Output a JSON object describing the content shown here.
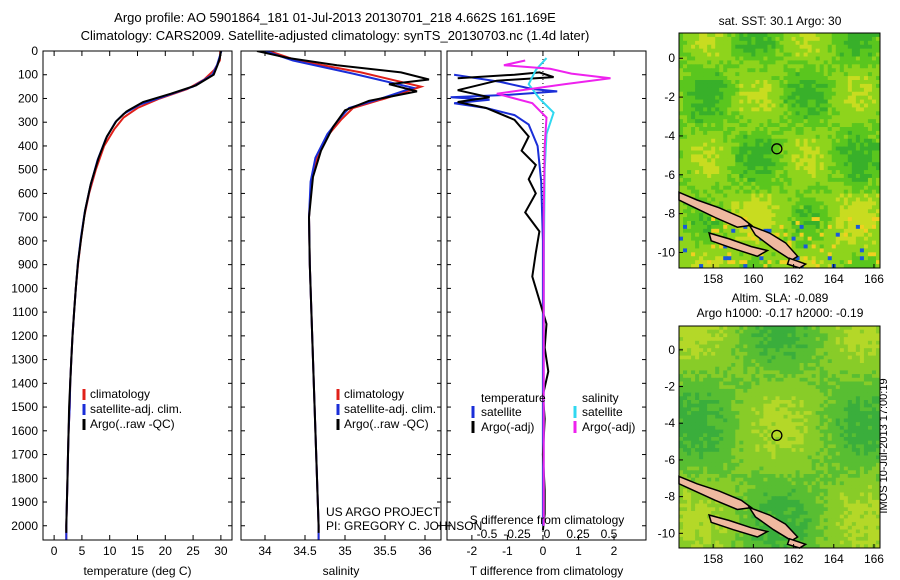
{
  "header": {
    "title_line1": "Argo profile: AO 5901864_181 01-Jul-2013 20130701_218 4.662S 161.169E",
    "title_line2": "Climatology: CARS2009. Satellite-adjusted climatology: synTS_20130703.nc (1.4d later)"
  },
  "colors": {
    "climatology": "#e0201a",
    "satellite": "#1a2ed8",
    "argo": "#000000",
    "sal_sat": "#30d8f0",
    "sal_argo": "#ee22ee"
  },
  "chart_data": [
    {
      "type": "line",
      "name": "temperature-profile",
      "xlabel": "temperature (deg C)",
      "ylabel": "",
      "xlim": [
        -2,
        32
      ],
      "ylim": [
        2060,
        0
      ],
      "xticks": [
        0,
        5,
        10,
        15,
        20,
        25,
        30
      ],
      "xtick_labels": [
        "0",
        "5",
        "10",
        "15",
        "20",
        "25",
        "30"
      ],
      "yticks": [
        0,
        100,
        200,
        300,
        400,
        500,
        600,
        700,
        800,
        900,
        1000,
        1100,
        1200,
        1300,
        1400,
        1500,
        1600,
        1700,
        1800,
        1900,
        2000
      ],
      "ytick_labels": [
        "0",
        "100",
        "200",
        "300",
        "400",
        "500",
        "600",
        "700",
        "800",
        "900",
        "1000",
        "1100",
        "1200",
        "1300",
        "1400",
        "1500",
        "1600",
        "1700",
        "1800",
        "1900",
        "2000"
      ],
      "series": [
        {
          "name": "climatology",
          "color": "#e0201a",
          "points": [
            [
              29.9,
              0
            ],
            [
              29.8,
              40
            ],
            [
              28.8,
              80
            ],
            [
              27,
              120
            ],
            [
              24,
              160
            ],
            [
              19,
              200
            ],
            [
              15,
              240
            ],
            [
              12.5,
              280
            ],
            [
              10.8,
              330
            ],
            [
              9,
              400
            ],
            [
              7.5,
              500
            ],
            [
              6.3,
              600
            ],
            [
              5.4,
              700
            ],
            [
              4.8,
              800
            ],
            [
              4.3,
              900
            ],
            [
              3.9,
              1000
            ],
            [
              3.6,
              1100
            ],
            [
              3.3,
              1200
            ],
            [
              3.1,
              1300
            ],
            [
              2.9,
              1400
            ],
            [
              2.8,
              1500
            ],
            [
              2.6,
              1600
            ],
            [
              2.5,
              1700
            ],
            [
              2.4,
              1800
            ],
            [
              2.3,
              1900
            ],
            [
              2.2,
              2000
            ],
            [
              2.2,
              2060
            ]
          ]
        },
        {
          "name": "satellite-adj. clim.",
          "color": "#1a2ed8",
          "points": [
            [
              30.1,
              0
            ],
            [
              29.7,
              30
            ],
            [
              29.3,
              60
            ],
            [
              28.5,
              100
            ],
            [
              25,
              150
            ],
            [
              20,
              190
            ],
            [
              15.5,
              225
            ],
            [
              12.5,
              265
            ],
            [
              11,
              300
            ],
            [
              9.3,
              370
            ],
            [
              7.8,
              460
            ],
            [
              6.5,
              570
            ],
            [
              5.5,
              680
            ],
            [
              4.8,
              790
            ],
            [
              4.3,
              890
            ],
            [
              3.9,
              1000
            ],
            [
              3.6,
              1100
            ],
            [
              3.3,
              1200
            ],
            [
              3.1,
              1300
            ],
            [
              2.9,
              1400
            ],
            [
              2.8,
              1500
            ],
            [
              2.6,
              1600
            ],
            [
              2.5,
              1700
            ],
            [
              2.4,
              1800
            ],
            [
              2.3,
              1900
            ],
            [
              2.2,
              2000
            ],
            [
              2.2,
              2060
            ]
          ]
        },
        {
          "name": "Argo(..raw -QC)",
          "color": "#000000",
          "points": [
            [
              30,
              0
            ],
            [
              29.8,
              30
            ],
            [
              29.4,
              60
            ],
            [
              28.7,
              100
            ],
            [
              25.5,
              145
            ],
            [
              21,
              180
            ],
            [
              16,
              215
            ],
            [
              13,
              255
            ],
            [
              11.2,
              295
            ],
            [
              9.5,
              360
            ],
            [
              8,
              450
            ],
            [
              6.6,
              560
            ],
            [
              5.6,
              670
            ],
            [
              4.9,
              780
            ],
            [
              4.3,
              890
            ],
            [
              3.9,
              1000
            ],
            [
              3.6,
              1100
            ],
            [
              3.3,
              1200
            ],
            [
              3.1,
              1300
            ],
            [
              2.9,
              1400
            ],
            [
              2.7,
              1500
            ],
            [
              2.6,
              1600
            ],
            [
              2.5,
              1700
            ],
            [
              2.4,
              1800
            ],
            [
              2.3,
              1900
            ],
            [
              2.2,
              2000
            ],
            [
              2.2,
              2030
            ]
          ]
        }
      ],
      "legend": [
        "climatology",
        "satellite-adj. clim.",
        "Argo(..raw -QC)"
      ]
    },
    {
      "type": "line",
      "name": "salinity-profile",
      "xlabel": "salinity",
      "xlim": [
        33.7,
        36.2
      ],
      "ylim": [
        2060,
        0
      ],
      "xticks": [
        34,
        34.5,
        35,
        35.5,
        36
      ],
      "xtick_labels": [
        "34",
        "34.5",
        "35",
        "35.5",
        "36"
      ],
      "series": [
        {
          "name": "climatology",
          "color": "#e0201a",
          "points": [
            [
              34.05,
              0
            ],
            [
              34.4,
              40
            ],
            [
              35.2,
              90
            ],
            [
              35.95,
              150
            ],
            [
              35.5,
              200
            ],
            [
              35.1,
              240
            ],
            [
              34.95,
              290
            ],
            [
              34.8,
              350
            ],
            [
              34.65,
              450
            ],
            [
              34.58,
              550
            ],
            [
              34.55,
              700
            ],
            [
              34.56,
              900
            ],
            [
              34.58,
              1100
            ],
            [
              34.6,
              1300
            ],
            [
              34.62,
              1500
            ],
            [
              34.64,
              1700
            ],
            [
              34.66,
              1900
            ],
            [
              34.67,
              2000
            ],
            [
              34.67,
              2060
            ]
          ]
        },
        {
          "name": "satellite-adj. clim.",
          "color": "#1a2ed8",
          "points": [
            [
              34.0,
              0
            ],
            [
              34.35,
              40
            ],
            [
              35.1,
              95
            ],
            [
              35.85,
              155
            ],
            [
              35.45,
              200
            ],
            [
              35.05,
              240
            ],
            [
              34.92,
              290
            ],
            [
              34.78,
              350
            ],
            [
              34.63,
              450
            ],
            [
              34.57,
              550
            ],
            [
              34.55,
              700
            ],
            [
              34.56,
              900
            ],
            [
              34.58,
              1100
            ],
            [
              34.6,
              1300
            ],
            [
              34.62,
              1500
            ],
            [
              34.64,
              1700
            ],
            [
              34.66,
              1900
            ],
            [
              34.67,
              2000
            ],
            [
              34.67,
              2060
            ]
          ]
        },
        {
          "name": "Argo(..raw -QC)",
          "color": "#000000",
          "points": [
            [
              33.9,
              0
            ],
            [
              34.3,
              30
            ],
            [
              34.9,
              60
            ],
            [
              35.7,
              90
            ],
            [
              36.05,
              120
            ],
            [
              35.55,
              140
            ],
            [
              35.9,
              170
            ],
            [
              35.3,
              210
            ],
            [
              35.0,
              250
            ],
            [
              34.85,
              320
            ],
            [
              34.7,
              420
            ],
            [
              34.6,
              530
            ],
            [
              34.55,
              700
            ],
            [
              34.56,
              900
            ],
            [
              34.58,
              1100
            ],
            [
              34.6,
              1300
            ],
            [
              34.62,
              1500
            ],
            [
              34.64,
              1700
            ],
            [
              34.66,
              1900
            ],
            [
              34.67,
              2000
            ],
            [
              34.67,
              2030
            ]
          ]
        }
      ],
      "legend": [
        "climatology",
        "satellite-adj. clim.",
        "Argo(..raw -QC)"
      ],
      "annotations": [
        "US ARGO PROJECT",
        "PI: GREGORY C. JOHNSON"
      ]
    },
    {
      "type": "line",
      "name": "difference-from-climatology",
      "xlabel": "T difference from climatology",
      "xlabel_top": "S difference from climatology",
      "xlim": [
        -2.7,
        2.9
      ],
      "ylim": [
        2060,
        0
      ],
      "xticks": [
        -2,
        -1,
        0,
        1,
        2
      ],
      "xtick_labels": [
        "-2",
        "-1",
        "0",
        "1",
        "2"
      ],
      "s_ticks": [
        "-0.5",
        "-0.25",
        "0",
        "0.25",
        "0.5"
      ],
      "series": [
        {
          "name": "T satellite",
          "color": "#1a2ed8",
          "points": [
            [
              -2.5,
              100
            ],
            [
              -1.2,
              130
            ],
            [
              -0.3,
              160
            ],
            [
              0.4,
              170
            ],
            [
              -1,
              185
            ],
            [
              -2.6,
              195
            ],
            [
              -1.5,
              205
            ],
            [
              -2.5,
              220
            ],
            [
              -1.6,
              240
            ],
            [
              -0.8,
              270
            ],
            [
              -0.4,
              310
            ],
            [
              -0.15,
              400
            ],
            [
              -0.05,
              550
            ],
            [
              0,
              800
            ],
            [
              0,
              1200
            ],
            [
              0,
              1600
            ],
            [
              0,
              2000
            ]
          ]
        },
        {
          "name": "T Argo(-adj)",
          "color": "#000000",
          "points": [
            [
              -2.4,
              115
            ],
            [
              -0.8,
              100
            ],
            [
              -0.1,
              90
            ],
            [
              0.3,
              110
            ],
            [
              -1.3,
              125
            ],
            [
              -2.4,
              165
            ],
            [
              -1.5,
              195
            ],
            [
              -2.4,
              215
            ],
            [
              -1.6,
              240
            ],
            [
              -0.8,
              290
            ],
            [
              -0.4,
              360
            ],
            [
              -0.6,
              420
            ],
            [
              -0.2,
              480
            ],
            [
              -0.4,
              540
            ],
            [
              -0.2,
              600
            ],
            [
              -0.5,
              680
            ],
            [
              -0.1,
              760
            ],
            [
              -0.2,
              850
            ],
            [
              -0.3,
              950
            ],
            [
              -0.1,
              1050
            ],
            [
              0.1,
              1150
            ],
            [
              0.05,
              1250
            ],
            [
              0.15,
              1350
            ],
            [
              0,
              1450
            ],
            [
              0.05,
              1550
            ],
            [
              0,
              1700
            ],
            [
              0.05,
              1850
            ],
            [
              0.05,
              1950
            ],
            [
              0,
              2020
            ]
          ]
        },
        {
          "name": "S satellite",
          "color": "#30d8f0",
          "points": [
            [
              0.1,
              30
            ],
            [
              -0.2,
              80
            ],
            [
              -0.4,
              140
            ],
            [
              -0.1,
              200
            ],
            [
              0.3,
              260
            ],
            [
              0.1,
              350
            ],
            [
              0.05,
              500
            ],
            [
              0.03,
              800
            ],
            [
              0.02,
              1200
            ],
            [
              0.02,
              1600
            ],
            [
              0.02,
              2000
            ]
          ]
        },
        {
          "name": "S Argo(-adj)",
          "color": "#ee22ee",
          "points": [
            [
              -0.5,
              40
            ],
            [
              -1.1,
              60
            ],
            [
              0.2,
              75
            ],
            [
              0.8,
              95
            ],
            [
              1.9,
              115
            ],
            [
              0.6,
              140
            ],
            [
              -1.3,
              180
            ],
            [
              -0.3,
              220
            ],
            [
              0.1,
              280
            ],
            [
              0.05,
              400
            ],
            [
              0.02,
              700
            ],
            [
              0.02,
              1200
            ],
            [
              0.02,
              1700
            ],
            [
              0.02,
              2000
            ]
          ]
        }
      ],
      "legend": {
        "temperature_heading": "temperature",
        "salinity_heading": "salinity",
        "t_items": [
          "satellite",
          "Argo(-adj)"
        ],
        "s_items": [
          "satellite",
          "Argo(-adj)"
        ]
      }
    },
    {
      "type": "heatmap",
      "name": "sst-map",
      "title": "sat. SST: 30.1 Argo: 30",
      "xticks": [
        "158",
        "160",
        "162",
        "164",
        "166"
      ],
      "yticks": [
        "0",
        "-2",
        "-4",
        "-6",
        "-8",
        "-10"
      ],
      "xlim": [
        156.3,
        166.3
      ],
      "ylim": [
        -10.8,
        1.3
      ],
      "marker": {
        "lon": 161.169,
        "lat": -4.662
      }
    },
    {
      "type": "heatmap",
      "name": "sla-map",
      "title": "Altim. SLA: -0.089",
      "subtitle": "Argo h1000: -0.17 h2000: -0.19",
      "xticks": [
        "158",
        "160",
        "162",
        "164",
        "166"
      ],
      "yticks": [
        "0",
        "-2",
        "-4",
        "-6",
        "-8",
        "-10"
      ],
      "xlim": [
        156.3,
        166.3
      ],
      "ylim": [
        -10.8,
        1.3
      ],
      "marker": {
        "lon": 161.169,
        "lat": -4.662
      }
    }
  ],
  "footer": {
    "stamp": "IMOS 10-Jul-2013 17:00:19"
  }
}
